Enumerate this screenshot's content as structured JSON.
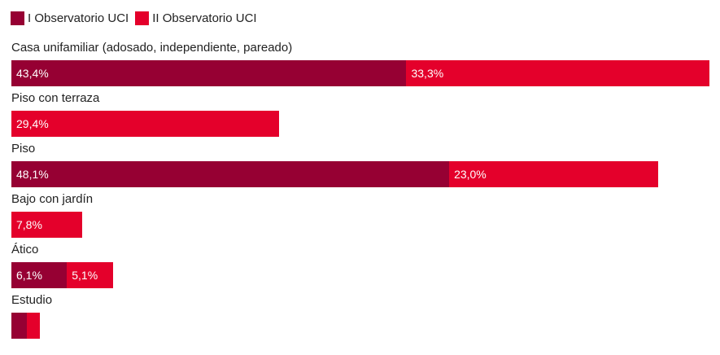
{
  "chart_data": {
    "type": "bar",
    "orientation": "horizontal",
    "stacked": true,
    "title": "",
    "xlabel": "",
    "ylabel": "",
    "xlim": [
      0,
      76.7
    ],
    "legend_position": "top-left",
    "categories": [
      "Casa unifamiliar (adosado, independiente, pareado)",
      "Piso con terraza",
      "Piso",
      "Bajo con jardín",
      "Ático",
      "Estudio"
    ],
    "series": [
      {
        "name": "I Observatorio UCI",
        "color": "#960033",
        "values": [
          43.4,
          0,
          48.1,
          0,
          6.1,
          1.7
        ],
        "labels": [
          "43,4%",
          "",
          "48,1%",
          "",
          "6,1%",
          ""
        ]
      },
      {
        "name": "II Observatorio UCI",
        "color": "#e4002b",
        "values": [
          33.3,
          29.4,
          23.0,
          7.8,
          5.1,
          1.4
        ],
        "labels": [
          "33,3%",
          "29,4%",
          "23,0%",
          "7,8%",
          "5,1%",
          ""
        ]
      }
    ]
  }
}
